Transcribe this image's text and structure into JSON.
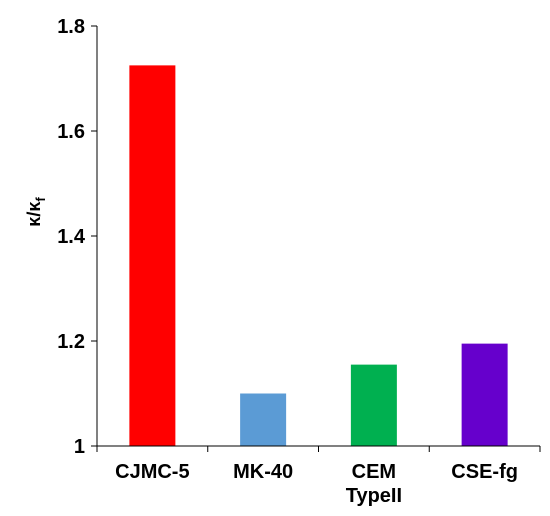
{
  "chart_data": {
    "type": "bar",
    "categories": [
      [
        "CJMC-5"
      ],
      [
        "MK-40"
      ],
      [
        "CEM",
        "TypeII"
      ],
      [
        "CSE-fg"
      ]
    ],
    "values": [
      1.725,
      1.1,
      1.155,
      1.195
    ],
    "colors": [
      "#ff0000",
      "#5b9bd5",
      "#00b050",
      "#6600cc"
    ],
    "title": "",
    "xlabel": "",
    "ylabel": {
      "main": "κ/κ",
      "sub": "f"
    },
    "ylim": [
      1,
      1.8
    ],
    "yticks": [
      "1",
      "1.2",
      "1.4",
      "1.6",
      "1.8"
    ],
    "grid": false,
    "legend": "none"
  }
}
